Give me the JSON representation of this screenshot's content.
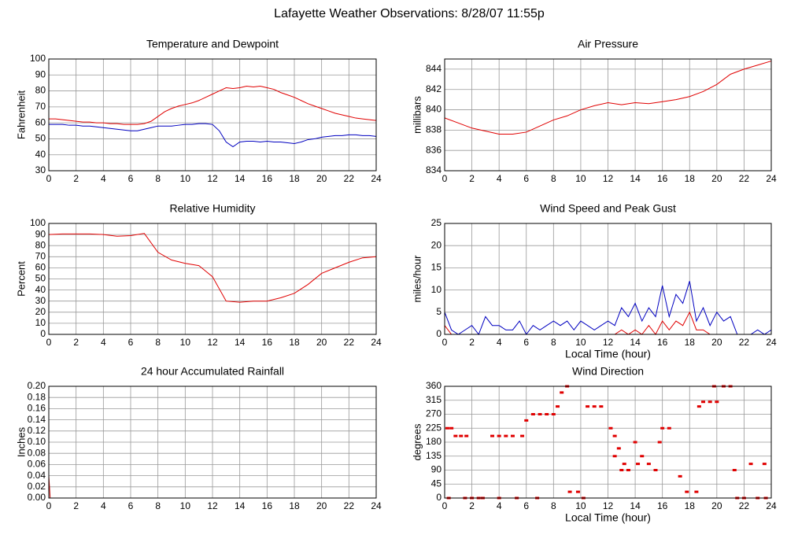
{
  "title": "Lafayette Weather Observations: 8/28/07 11:55p",
  "chart_data": [
    {
      "type": "line",
      "title": "Temperature and Dewpoint",
      "ylabel": "Fahrenheit",
      "x": [
        0,
        0.5,
        1,
        1.5,
        2,
        2.5,
        3,
        3.5,
        4,
        4.5,
        5,
        5.5,
        6,
        6.5,
        7,
        7.5,
        8,
        8.5,
        9,
        9.5,
        10,
        10.5,
        11,
        11.5,
        12,
        12.5,
        13,
        13.5,
        14,
        14.5,
        15,
        15.5,
        16,
        16.5,
        17,
        17.5,
        18,
        18.5,
        19,
        19.5,
        20,
        20.5,
        21,
        21.5,
        22,
        22.5,
        23,
        23.5,
        24
      ],
      "series": [
        {
          "color": "#e00000",
          "values": [
            62.5,
            62.5,
            62,
            61.5,
            61,
            60.5,
            60.5,
            60,
            60,
            59.5,
            59.5,
            59,
            59,
            59,
            59.5,
            61,
            64,
            67,
            69,
            70.5,
            71.5,
            72.5,
            74,
            76,
            78,
            80,
            82,
            81.5,
            82,
            83,
            82.5,
            83,
            82,
            81,
            79,
            77.5,
            76,
            74,
            72,
            70.5,
            69,
            67.5,
            66,
            65,
            64,
            63,
            62.5,
            62,
            61.5
          ]
        },
        {
          "color": "#0000c0",
          "values": [
            59,
            59,
            59,
            58.5,
            58.5,
            58,
            58,
            57.5,
            57,
            56.5,
            56,
            55.5,
            55,
            55,
            56,
            57,
            58,
            58,
            58,
            58.5,
            59,
            59,
            59.5,
            59.5,
            59,
            55,
            48,
            45,
            48,
            48.5,
            48.5,
            48,
            48.5,
            48,
            48,
            47.5,
            47,
            48,
            49.5,
            50,
            51,
            51.5,
            52,
            52,
            52.5,
            52.5,
            52,
            52,
            51.5
          ]
        }
      ],
      "xlim": [
        0,
        24
      ],
      "xticks": [
        0,
        2,
        4,
        6,
        8,
        10,
        12,
        14,
        16,
        18,
        20,
        22,
        24
      ],
      "ylim": [
        30,
        100
      ],
      "yticks": [
        30,
        40,
        50,
        60,
        70,
        80,
        90,
        100
      ],
      "grid": true
    },
    {
      "type": "line",
      "title": "Air Pressure",
      "ylabel": "millibars",
      "x": [
        0,
        1,
        2,
        3,
        4,
        5,
        6,
        7,
        8,
        9,
        10,
        11,
        12,
        13,
        14,
        15,
        16,
        17,
        18,
        19,
        20,
        21,
        22,
        23,
        24
      ],
      "series": [
        {
          "color": "#e00000",
          "values": [
            839.2,
            838.7,
            838.2,
            837.9,
            837.6,
            837.6,
            837.8,
            838.4,
            839,
            839.4,
            840,
            840.4,
            840.7,
            840.5,
            840.7,
            840.6,
            840.8,
            841,
            841.3,
            841.8,
            842.5,
            843.5,
            844,
            844.4,
            844.8
          ]
        }
      ],
      "xlim": [
        0,
        24
      ],
      "xticks": [
        0,
        2,
        4,
        6,
        8,
        10,
        12,
        14,
        16,
        18,
        20,
        22,
        24
      ],
      "ylim": [
        834,
        845
      ],
      "yticks": [
        834,
        836,
        838,
        840,
        842,
        844
      ],
      "grid": true
    },
    {
      "type": "line",
      "title": "Relative Humidity",
      "ylabel": "Percent",
      "x": [
        0,
        1,
        2,
        3,
        4,
        5,
        6,
        7,
        8,
        9,
        10,
        11,
        12,
        13,
        14,
        15,
        16,
        17,
        18,
        19,
        20,
        21,
        22,
        23,
        24
      ],
      "series": [
        {
          "color": "#e00000",
          "values": [
            90,
            90.5,
            90.5,
            90.5,
            90,
            88.5,
            89,
            91,
            74,
            67,
            64,
            62,
            52,
            30,
            29,
            30,
            30,
            33,
            37,
            45,
            55,
            60,
            65,
            69,
            70
          ]
        }
      ],
      "xlim": [
        0,
        24
      ],
      "xticks": [
        0,
        2,
        4,
        6,
        8,
        10,
        12,
        14,
        16,
        18,
        20,
        22,
        24
      ],
      "ylim": [
        0,
        100
      ],
      "yticks": [
        0,
        10,
        20,
        30,
        40,
        50,
        60,
        70,
        80,
        90,
        100
      ],
      "grid": true
    },
    {
      "type": "line",
      "title": "Wind Speed and Peak Gust",
      "ylabel": "miles/hour",
      "xlabel": "Local Time (hour)",
      "x": [
        0,
        0.5,
        1,
        1.5,
        2,
        2.5,
        3,
        3.5,
        4,
        4.5,
        5,
        5.5,
        6,
        6.5,
        7,
        7.5,
        8,
        8.5,
        9,
        9.5,
        10,
        10.5,
        11,
        11.5,
        12,
        12.5,
        13,
        13.5,
        14,
        14.5,
        15,
        15.5,
        16,
        16.5,
        17,
        17.5,
        18,
        18.5,
        19,
        19.5,
        20,
        20.5,
        21,
        21.5,
        22,
        22.5,
        23,
        23.5,
        24
      ],
      "series": [
        {
          "color": "#0000c0",
          "values": [
            5,
            1,
            0,
            1,
            2,
            0,
            4,
            2,
            2,
            1,
            1,
            3,
            0,
            2,
            1,
            2,
            3,
            2,
            3,
            1,
            3,
            2,
            1,
            2,
            3,
            2,
            6,
            4,
            7,
            3,
            6,
            4,
            11,
            4,
            9,
            7,
            12,
            3,
            6,
            2,
            5,
            3,
            4,
            0,
            0,
            0,
            1,
            0,
            1
          ]
        },
        {
          "color": "#e00000",
          "values": [
            2,
            0,
            0,
            0,
            0,
            0,
            0,
            0,
            0,
            0,
            0,
            0,
            0,
            0,
            0,
            0,
            0,
            0,
            0,
            0,
            0,
            0,
            0,
            0,
            0,
            0,
            1,
            0,
            1,
            0,
            2,
            0,
            3,
            1,
            3,
            2,
            5,
            1,
            1,
            0,
            0,
            0,
            0,
            0,
            0,
            0,
            0,
            0,
            0
          ]
        }
      ],
      "xlim": [
        0,
        24
      ],
      "xticks": [
        0,
        2,
        4,
        6,
        8,
        10,
        12,
        14,
        16,
        18,
        20,
        22,
        24
      ],
      "ylim": [
        0,
        25
      ],
      "yticks": [
        0,
        5,
        10,
        15,
        20,
        25
      ],
      "grid": true
    },
    {
      "type": "line",
      "title": "24 hour Accumulated Rainfall",
      "ylabel": "Inches",
      "x": [
        0,
        0.1,
        24
      ],
      "series": [
        {
          "color": "#c00000",
          "values": [
            0.04,
            0,
            0
          ]
        }
      ],
      "xlim": [
        0,
        24
      ],
      "xticks": [
        0,
        2,
        4,
        6,
        8,
        10,
        12,
        14,
        16,
        18,
        20,
        22,
        24
      ],
      "ylim": [
        0,
        0.2
      ],
      "yticks": [
        {
          "value": 0,
          "label": "0.00"
        },
        {
          "value": 0.02,
          "label": "0.02"
        },
        {
          "value": 0.04,
          "label": "0.04"
        },
        {
          "value": 0.06,
          "label": "0.06"
        },
        {
          "value": 0.08,
          "label": "0.08"
        },
        {
          "value": 0.1,
          "label": "0.10"
        },
        {
          "value": 0.12,
          "label": "0.12"
        },
        {
          "value": 0.14,
          "label": "0.14"
        },
        {
          "value": 0.16,
          "label": "0.16"
        },
        {
          "value": 0.18,
          "label": "0.18"
        },
        {
          "value": 0.2,
          "label": "0.20"
        }
      ],
      "grid": true
    },
    {
      "type": "scatter",
      "title": "Wind Direction",
      "ylabel": "degrees",
      "xlabel": "Local Time (hour)",
      "x": [
        0.2,
        0.5,
        0.3,
        0.8,
        1.2,
        1.6,
        1.5,
        2,
        2.5,
        2.8,
        3.5,
        4,
        4.5,
        5,
        4,
        5.3,
        5.7,
        6,
        6.5,
        7,
        6.8,
        7.5,
        8,
        8.3,
        8.6,
        9,
        9.2,
        9.8,
        10.2,
        10.5,
        11,
        11.5,
        12.2,
        12.5,
        12.5,
        12.8,
        13,
        13.2,
        13.5,
        14,
        14.2,
        14.5,
        15,
        15.5,
        15.8,
        16,
        16.5,
        17.3,
        17.8,
        18.5,
        18.7,
        19,
        19.5,
        19.8,
        20,
        20.5,
        21,
        21.3,
        21.5,
        22,
        23,
        23.6,
        22.5,
        23.5
      ],
      "series": [
        {
          "color": "#e00000",
          "values": [
            225,
            225,
            0,
            200,
            200,
            200,
            0,
            0,
            0,
            0,
            200,
            200,
            200,
            200,
            0,
            0,
            200,
            250,
            270,
            270,
            0,
            270,
            270,
            295,
            340,
            360,
            20,
            20,
            0,
            295,
            295,
            295,
            225,
            200,
            135,
            160,
            90,
            110,
            90,
            180,
            110,
            135,
            110,
            90,
            180,
            225,
            225,
            70,
            20,
            20,
            295,
            310,
            310,
            360,
            310,
            360,
            360,
            90,
            0,
            0,
            0,
            0,
            110,
            110
          ]
        }
      ],
      "xlim": [
        0,
        24
      ],
      "xticks": [
        0,
        2,
        4,
        6,
        8,
        10,
        12,
        14,
        16,
        18,
        20,
        22,
        24
      ],
      "ylim": [
        0,
        360
      ],
      "yticks": [
        0,
        45,
        90,
        135,
        180,
        225,
        270,
        315,
        360
      ],
      "grid": true
    }
  ]
}
